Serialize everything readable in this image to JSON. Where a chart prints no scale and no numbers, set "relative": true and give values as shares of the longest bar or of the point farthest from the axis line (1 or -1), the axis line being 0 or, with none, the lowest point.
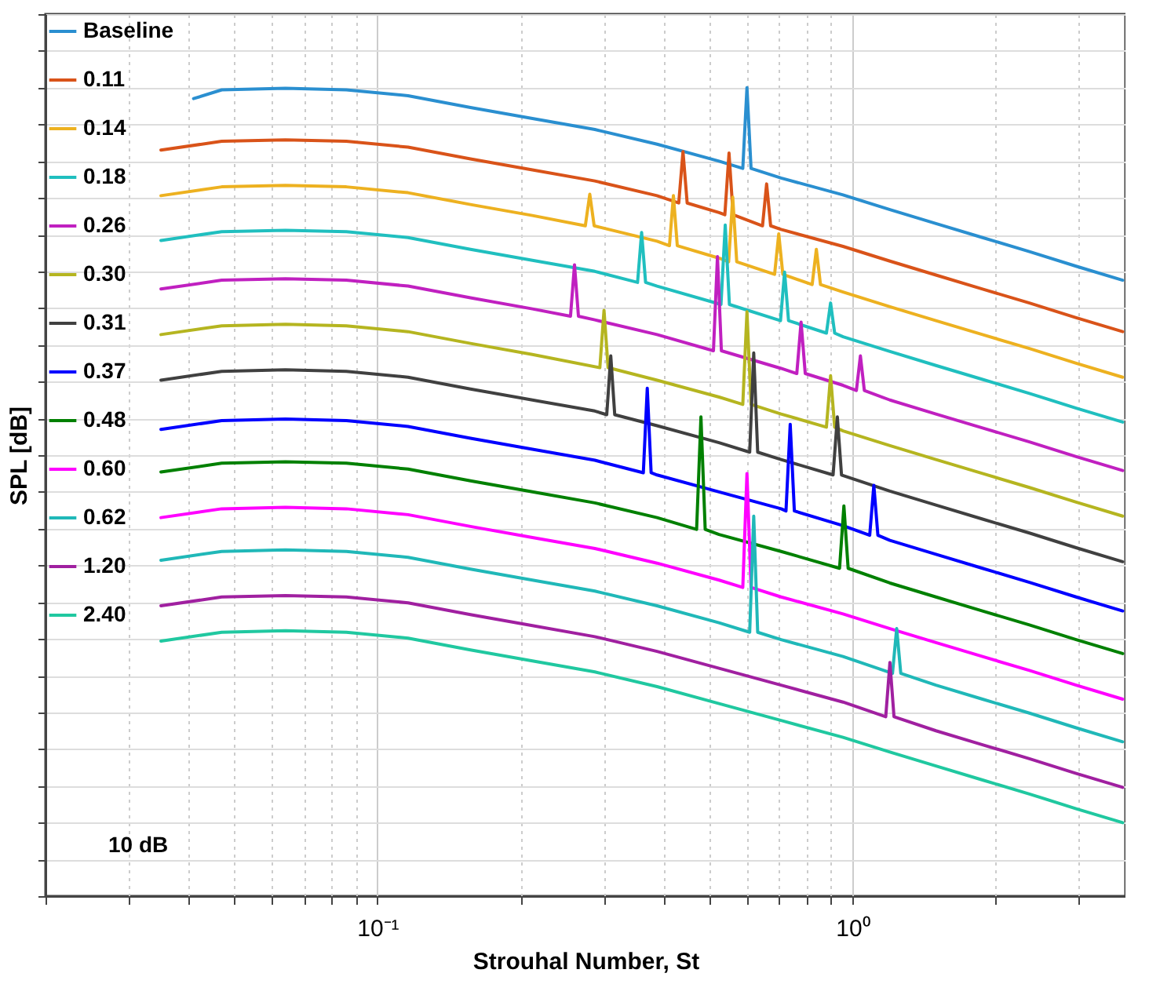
{
  "chart_data": {
    "type": "line",
    "relative": true,
    "xlabel": "Strouhal Number, St",
    "ylabel": "SPL [dB]",
    "log": "x",
    "xlim": [
      0.02,
      3.76
    ],
    "xticks": [
      {
        "value": 0.02,
        "label": null
      },
      {
        "value": 0.03,
        "label": null
      },
      {
        "value": 0.04,
        "label": null
      },
      {
        "value": 0.05,
        "label": null
      },
      {
        "value": 0.06,
        "label": null
      },
      {
        "value": 0.07,
        "label": null
      },
      {
        "value": 0.08,
        "label": null
      },
      {
        "value": 0.09,
        "label": null
      },
      {
        "value": 0.1,
        "label": "10⁻¹"
      },
      {
        "value": 0.2,
        "label": null
      },
      {
        "value": 0.3,
        "label": null
      },
      {
        "value": 0.4,
        "label": null
      },
      {
        "value": 0.5,
        "label": null
      },
      {
        "value": 0.6,
        "label": null
      },
      {
        "value": 0.7,
        "label": null
      },
      {
        "value": 0.8,
        "label": null
      },
      {
        "value": 0.9,
        "label": null
      },
      {
        "value": 1,
        "label": "10⁰"
      },
      {
        "value": 2,
        "label": null
      },
      {
        "value": 3,
        "label": null
      }
    ],
    "grid": true,
    "legend": "top left",
    "marker": "none",
    "line_style": "solid",
    "annotations": [
      "10 dB"
    ],
    "series": [
      {
        "name": "Baseline",
        "color": "#2a8fd0",
        "x": [
          0.041,
          0.047,
          0.064,
          0.086,
          0.116,
          0.157,
          0.212,
          0.287,
          0.388,
          0.524,
          0.588,
          0.6,
          0.612,
          0.708,
          0.956,
          1.2,
          1.5,
          1.88,
          2.36,
          2.96,
          3.71
        ],
        "values": [
          0.985,
          0.997,
          0.999,
          0.997,
          0.989,
          0.973,
          0.958,
          0.943,
          0.923,
          0.9,
          0.89,
          1.0,
          0.89,
          0.877,
          0.854,
          0.834,
          0.815,
          0.796,
          0.777,
          0.757,
          0.738
        ]
      },
      {
        "name": "0.11",
        "color": "#d95319",
        "x": [
          0.035,
          0.047,
          0.064,
          0.086,
          0.116,
          0.157,
          0.212,
          0.287,
          0.388,
          0.431,
          0.44,
          0.449,
          0.524,
          0.539,
          0.55,
          0.561,
          0.647,
          0.66,
          0.673,
          0.708,
          0.956,
          1.2,
          1.5,
          1.88,
          2.36,
          2.96,
          3.71
        ],
        "values": [
          0.915,
          0.927,
          0.929,
          0.927,
          0.919,
          0.903,
          0.888,
          0.873,
          0.853,
          0.843,
          0.913,
          0.843,
          0.83,
          0.827,
          0.911,
          0.827,
          0.812,
          0.869,
          0.812,
          0.807,
          0.784,
          0.764,
          0.745,
          0.726,
          0.707,
          0.687,
          0.668
        ]
      },
      {
        "name": "0.14",
        "color": "#edb120",
        "x": [
          0.035,
          0.047,
          0.064,
          0.086,
          0.116,
          0.157,
          0.212,
          0.274,
          0.28,
          0.286,
          0.388,
          0.412,
          0.42,
          0.428,
          0.524,
          0.549,
          0.56,
          0.571,
          0.686,
          0.7,
          0.714,
          0.823,
          0.84,
          0.857,
          0.956,
          1.2,
          1.5,
          1.88,
          2.36,
          2.96,
          3.71
        ],
        "values": [
          0.853,
          0.865,
          0.867,
          0.865,
          0.857,
          0.841,
          0.826,
          0.812,
          0.855,
          0.812,
          0.791,
          0.785,
          0.853,
          0.785,
          0.768,
          0.763,
          0.851,
          0.763,
          0.746,
          0.801,
          0.746,
          0.732,
          0.78,
          0.732,
          0.722,
          0.702,
          0.683,
          0.664,
          0.645,
          0.625,
          0.606
        ]
      },
      {
        "name": "0.18",
        "color": "#20bfbf",
        "x": [
          0.035,
          0.047,
          0.064,
          0.086,
          0.116,
          0.157,
          0.212,
          0.287,
          0.353,
          0.36,
          0.367,
          0.388,
          0.529,
          0.54,
          0.551,
          0.706,
          0.72,
          0.734,
          0.882,
          0.9,
          0.918,
          0.956,
          1.2,
          1.5,
          1.88,
          2.36,
          2.96,
          3.71
        ],
        "values": [
          0.792,
          0.804,
          0.806,
          0.804,
          0.796,
          0.78,
          0.765,
          0.75,
          0.735,
          0.803,
          0.735,
          0.73,
          0.705,
          0.813,
          0.705,
          0.683,
          0.749,
          0.683,
          0.666,
          0.707,
          0.666,
          0.661,
          0.641,
          0.622,
          0.603,
          0.584,
          0.564,
          0.545
        ]
      },
      {
        "name": "0.26",
        "color": "#c020c0",
        "x": [
          0.035,
          0.047,
          0.064,
          0.086,
          0.116,
          0.157,
          0.212,
          0.255,
          0.26,
          0.265,
          0.287,
          0.388,
          0.51,
          0.52,
          0.53,
          0.708,
          0.764,
          0.78,
          0.796,
          0.956,
          1.02,
          1.04,
          1.06,
          1.2,
          1.5,
          1.88,
          2.36,
          2.96,
          3.71
        ],
        "values": [
          0.726,
          0.738,
          0.74,
          0.738,
          0.73,
          0.714,
          0.699,
          0.689,
          0.759,
          0.689,
          0.684,
          0.664,
          0.642,
          0.77,
          0.642,
          0.618,
          0.611,
          0.681,
          0.611,
          0.595,
          0.588,
          0.635,
          0.588,
          0.575,
          0.556,
          0.537,
          0.518,
          0.498,
          0.479
        ]
      },
      {
        "name": "0.30",
        "color": "#b5b520",
        "x": [
          0.035,
          0.047,
          0.064,
          0.086,
          0.116,
          0.157,
          0.212,
          0.294,
          0.3,
          0.306,
          0.388,
          0.524,
          0.588,
          0.6,
          0.612,
          0.708,
          0.882,
          0.9,
          0.918,
          0.956,
          1.2,
          1.5,
          1.88,
          2.36,
          2.96,
          3.71
        ],
        "values": [
          0.664,
          0.676,
          0.678,
          0.676,
          0.668,
          0.652,
          0.637,
          0.619,
          0.697,
          0.619,
          0.602,
          0.579,
          0.569,
          0.695,
          0.569,
          0.556,
          0.538,
          0.608,
          0.538,
          0.533,
          0.513,
          0.494,
          0.475,
          0.456,
          0.436,
          0.417
        ]
      },
      {
        "name": "0.31",
        "color": "#404040",
        "x": [
          0.035,
          0.047,
          0.064,
          0.086,
          0.116,
          0.157,
          0.212,
          0.287,
          0.304,
          0.31,
          0.316,
          0.388,
          0.524,
          0.608,
          0.62,
          0.632,
          0.708,
          0.911,
          0.93,
          0.949,
          1.2,
          1.5,
          1.88,
          2.36,
          2.96,
          3.71
        ],
        "values": [
          0.602,
          0.614,
          0.616,
          0.614,
          0.606,
          0.59,
          0.575,
          0.56,
          0.555,
          0.635,
          0.555,
          0.54,
          0.517,
          0.504,
          0.639,
          0.504,
          0.494,
          0.473,
          0.552,
          0.473,
          0.451,
          0.432,
          0.413,
          0.394,
          0.374,
          0.355
        ]
      },
      {
        "name": "0.37",
        "color": "#0000ff",
        "x": [
          0.035,
          0.047,
          0.064,
          0.086,
          0.116,
          0.157,
          0.212,
          0.287,
          0.363,
          0.37,
          0.377,
          0.388,
          0.524,
          0.708,
          0.725,
          0.74,
          0.755,
          0.956,
          1.088,
          1.11,
          1.132,
          1.2,
          1.5,
          1.88,
          2.36,
          2.96,
          3.71
        ],
        "values": [
          0.535,
          0.547,
          0.549,
          0.547,
          0.539,
          0.523,
          0.508,
          0.493,
          0.476,
          0.591,
          0.476,
          0.473,
          0.45,
          0.427,
          0.424,
          0.542,
          0.424,
          0.404,
          0.391,
          0.459,
          0.391,
          0.384,
          0.365,
          0.346,
          0.327,
          0.307,
          0.288
        ]
      },
      {
        "name": "0.48",
        "color": "#008000",
        "x": [
          0.035,
          0.047,
          0.064,
          0.086,
          0.116,
          0.157,
          0.212,
          0.287,
          0.388,
          0.47,
          0.48,
          0.49,
          0.524,
          0.708,
          0.94,
          0.96,
          0.98,
          1.2,
          1.5,
          1.88,
          2.36,
          2.96,
          3.71
        ],
        "values": [
          0.477,
          0.489,
          0.491,
          0.489,
          0.481,
          0.465,
          0.45,
          0.435,
          0.415,
          0.399,
          0.552,
          0.399,
          0.392,
          0.369,
          0.346,
          0.431,
          0.346,
          0.326,
          0.307,
          0.288,
          0.269,
          0.249,
          0.23
        ]
      },
      {
        "name": "0.60",
        "color": "#ff00ff",
        "x": [
          0.035,
          0.047,
          0.064,
          0.086,
          0.116,
          0.157,
          0.212,
          0.287,
          0.388,
          0.524,
          0.588,
          0.6,
          0.612,
          0.708,
          0.956,
          1.2,
          1.5,
          1.88,
          2.36,
          2.96,
          3.71
        ],
        "values": [
          0.415,
          0.427,
          0.429,
          0.427,
          0.419,
          0.403,
          0.388,
          0.373,
          0.353,
          0.33,
          0.32,
          0.475,
          0.32,
          0.307,
          0.284,
          0.264,
          0.245,
          0.226,
          0.207,
          0.187,
          0.168
        ]
      },
      {
        "name": "0.62",
        "color": "#20b8b8",
        "x": [
          0.035,
          0.047,
          0.064,
          0.086,
          0.116,
          0.157,
          0.212,
          0.287,
          0.388,
          0.524,
          0.608,
          0.62,
          0.632,
          0.708,
          0.956,
          1.215,
          1.24,
          1.265,
          1.5,
          1.88,
          2.36,
          2.96,
          3.71
        ],
        "values": [
          0.357,
          0.369,
          0.371,
          0.369,
          0.361,
          0.345,
          0.33,
          0.315,
          0.295,
          0.272,
          0.259,
          0.417,
          0.259,
          0.249,
          0.226,
          0.203,
          0.264,
          0.203,
          0.187,
          0.168,
          0.149,
          0.129,
          0.11
        ]
      },
      {
        "name": "1.20",
        "color": "#a020a0",
        "x": [
          0.035,
          0.047,
          0.064,
          0.086,
          0.116,
          0.157,
          0.212,
          0.287,
          0.388,
          0.524,
          0.708,
          0.956,
          1.176,
          1.2,
          1.224,
          1.5,
          1.88,
          2.36,
          2.96,
          3.71
        ],
        "values": [
          0.295,
          0.307,
          0.309,
          0.307,
          0.299,
          0.283,
          0.268,
          0.253,
          0.233,
          0.21,
          0.187,
          0.164,
          0.144,
          0.218,
          0.144,
          0.125,
          0.106,
          0.087,
          0.067,
          0.048
        ]
      },
      {
        "name": "2.40",
        "color": "#20c8a0",
        "x": [
          0.035,
          0.047,
          0.064,
          0.086,
          0.116,
          0.157,
          0.212,
          0.287,
          0.388,
          0.524,
          0.708,
          0.956,
          1.2,
          1.5,
          1.88,
          2.36,
          2.96,
          3.71
        ],
        "values": [
          0.247,
          0.259,
          0.261,
          0.259,
          0.251,
          0.235,
          0.22,
          0.205,
          0.185,
          0.162,
          0.139,
          0.116,
          0.096,
          0.077,
          0.058,
          0.039,
          0.019,
          0
        ]
      }
    ]
  }
}
